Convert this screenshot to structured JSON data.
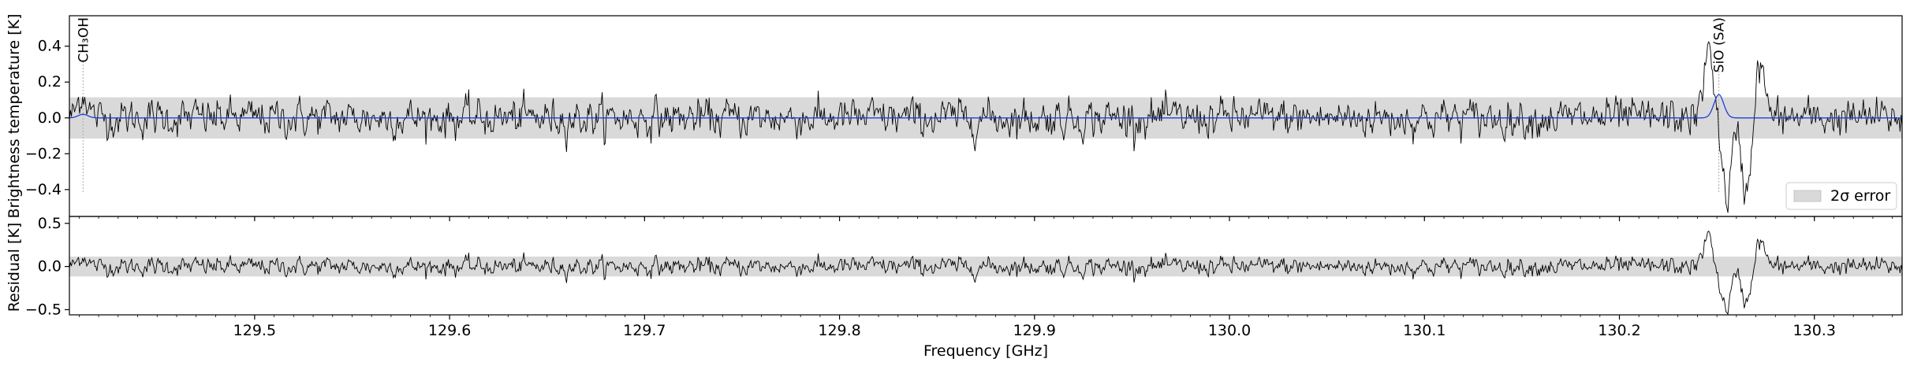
{
  "chart_data": {
    "type": "line",
    "x_range": [
      129.405,
      130.345
    ],
    "x_ticks": [
      129.5,
      129.6,
      129.7,
      129.8,
      129.9,
      130.0,
      130.1,
      130.2,
      130.3
    ],
    "x_tick_labels": [
      "129.5",
      "129.6",
      "129.7",
      "129.8",
      "129.9",
      "130.0",
      "130.1",
      "130.2",
      "130.3"
    ],
    "xlabel": "Frequency [GHz]",
    "colors": {
      "observed": "#000000",
      "model": "#1f3fd6",
      "error_band": "#d9d9d9",
      "marker": "#aaaaaa"
    },
    "panels": [
      {
        "name": "spectrum",
        "ylabel": "Brightness temperature [K]",
        "ylim": [
          -0.55,
          0.57
        ],
        "y_ticks": [
          -0.4,
          -0.2,
          0.0,
          0.2,
          0.4
        ],
        "y_tick_labels": [
          "−0.4",
          "−0.2",
          "0.0",
          "0.2",
          "0.4"
        ],
        "error_band": [
          -0.115,
          0.115
        ],
        "legend": {
          "position": "lower-right",
          "entries": [
            "2σ error"
          ]
        },
        "line_labels": [
          {
            "text": "CH₃OH",
            "freq": 129.412
          },
          {
            "text": "SiO (SA)",
            "freq": 130.251
          }
        ]
      },
      {
        "name": "residual",
        "ylabel": "Residual [K]",
        "ylim": [
          -0.56,
          0.58
        ],
        "y_ticks": [
          -0.5,
          0.0,
          0.5
        ],
        "y_tick_labels": [
          "−0.5",
          "0.0",
          "0.5"
        ],
        "error_band": [
          -0.115,
          0.115
        ]
      }
    ],
    "series": [
      {
        "role": "observed spectrum",
        "noise_rms": 0.052,
        "features": [
          {
            "freq": 129.412,
            "peak": 0.14
          },
          {
            "freq": 130.246,
            "peak": 0.38
          },
          {
            "freq": 130.255,
            "peak": -0.44
          },
          {
            "freq": 130.265,
            "peak": -0.41
          },
          {
            "freq": 130.272,
            "peak": 0.3
          }
        ]
      },
      {
        "role": "model",
        "baseline": 0.0,
        "features": [
          {
            "freq": 129.412,
            "peak": 0.02
          },
          {
            "freq": 130.251,
            "peak": 0.13
          }
        ]
      }
    ]
  }
}
